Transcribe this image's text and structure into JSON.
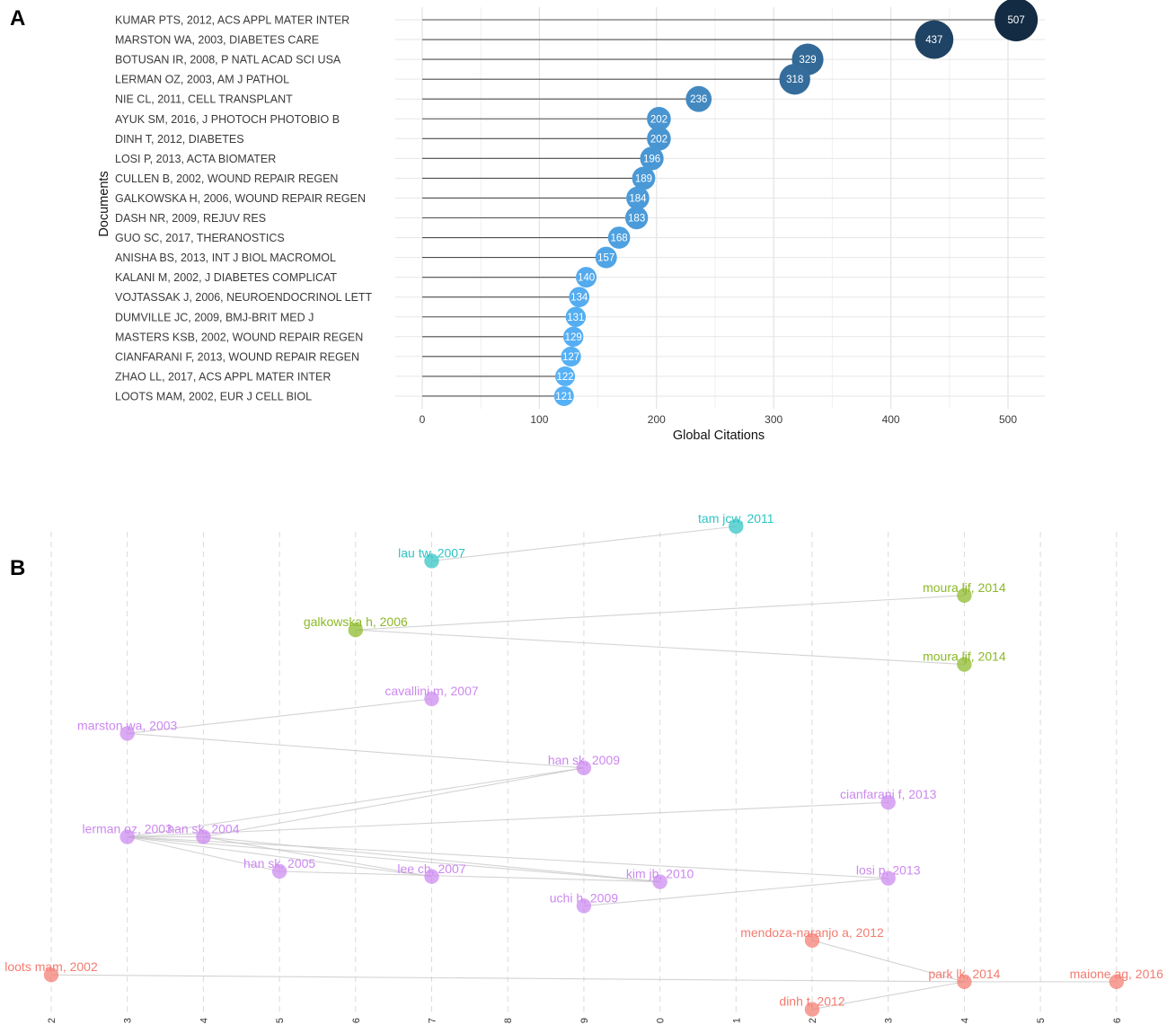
{
  "panels": {
    "a": {
      "letter": "A"
    },
    "b": {
      "letter": "B"
    }
  },
  "chart_data": [
    {
      "type": "lollipop",
      "panel": "A",
      "xlabel": "Global Citations",
      "ylabel": "Documents",
      "xlim": [
        0,
        530
      ],
      "xticks": [
        0,
        100,
        200,
        300,
        400,
        500
      ],
      "grid": true,
      "color_scale": {
        "low": "#56b1f7",
        "high": "#132b43",
        "domain": [
          121,
          507
        ]
      },
      "documents": [
        {
          "label": "KUMAR PTS, 2012, ACS APPL MATER INTER",
          "value": 507
        },
        {
          "label": "MARSTON WA, 2003, DIABETES CARE",
          "value": 437
        },
        {
          "label": "BOTUSAN IR, 2008, P NATL ACAD SCI USA",
          "value": 329
        },
        {
          "label": "LERMAN OZ, 2003, AM J PATHOL",
          "value": 318
        },
        {
          "label": "NIE CL, 2011, CELL TRANSPLANT",
          "value": 236
        },
        {
          "label": "AYUK SM, 2016, J PHOTOCH PHOTOBIO B",
          "value": 202
        },
        {
          "label": "DINH T, 2012, DIABETES",
          "value": 202
        },
        {
          "label": "LOSI P, 2013, ACTA BIOMATER",
          "value": 196
        },
        {
          "label": "CULLEN B, 2002, WOUND REPAIR REGEN",
          "value": 189
        },
        {
          "label": "GALKOWSKA H, 2006, WOUND REPAIR REGEN",
          "value": 184
        },
        {
          "label": "DASH NR, 2009, REJUV RES",
          "value": 183
        },
        {
          "label": "GUO SC, 2017, THERANOSTICS",
          "value": 168
        },
        {
          "label": "ANISHA BS, 2013, INT J BIOL MACROMOL",
          "value": 157
        },
        {
          "label": "KALANI M, 2002, J DIABETES COMPLICAT",
          "value": 140
        },
        {
          "label": "VOJTASSAK J, 2006, NEUROENDOCRINOL LETT",
          "value": 134
        },
        {
          "label": "DUMVILLE JC, 2009, BMJ-BRIT MED J",
          "value": 131
        },
        {
          "label": "MASTERS KSB, 2002, WOUND REPAIR REGEN",
          "value": 129
        },
        {
          "label": "CIANFARANI F, 2013, WOUND REPAIR REGEN",
          "value": 127
        },
        {
          "label": "ZHAO LL, 2017, ACS APPL MATER INTER",
          "value": 122
        },
        {
          "label": "LOOTS MAM, 2002, EUR J CELL BIOL",
          "value": 121
        }
      ]
    },
    {
      "type": "network",
      "panel": "B",
      "description_axis": "publication year",
      "year_range": [
        2002,
        2016
      ],
      "year_tick_labels": [
        "2",
        "3",
        "4",
        "5",
        "6",
        "7",
        "8",
        "9",
        "0",
        "1",
        "2",
        "3",
        "4",
        "5",
        "6"
      ],
      "cluster_colors": {
        "teal": "#2ec4c4",
        "green": "#8cb828",
        "purple": "#cc88f0",
        "red": "#f47b70"
      },
      "nodes": [
        {
          "id": "tam",
          "label": "tam jcw, 2011",
          "year": 2011,
          "cluster": "teal",
          "rank": 1
        },
        {
          "id": "lau",
          "label": "lau tw, 2007",
          "year": 2007,
          "cluster": "teal",
          "rank": 2
        },
        {
          "id": "moura1",
          "label": "moura ljf, 2014",
          "year": 2014,
          "cluster": "green",
          "rank": 3
        },
        {
          "id": "galkowska",
          "label": "galkowska h, 2006",
          "year": 2006,
          "cluster": "green",
          "rank": 4
        },
        {
          "id": "moura2",
          "label": "moura ljf, 2014",
          "year": 2014,
          "cluster": "green",
          "rank": 5
        },
        {
          "id": "cavallini",
          "label": "cavallini m, 2007",
          "year": 2007,
          "cluster": "purple",
          "rank": 6
        },
        {
          "id": "marston",
          "label": "marston wa, 2003",
          "year": 2003,
          "cluster": "purple",
          "rank": 7
        },
        {
          "id": "han2009",
          "label": "han sk, 2009",
          "year": 2009,
          "cluster": "purple",
          "rank": 8
        },
        {
          "id": "cianfarani",
          "label": "cianfarani f, 2013",
          "year": 2013,
          "cluster": "purple",
          "rank": 9
        },
        {
          "id": "lerman",
          "label": "lerman oz, 2003",
          "year": 2003,
          "cluster": "purple",
          "rank": 10
        },
        {
          "id": "han2004",
          "label": "han sk, 2004",
          "year": 2004,
          "cluster": "purple",
          "rank": 10
        },
        {
          "id": "han2005",
          "label": "han sk, 2005",
          "year": 2005,
          "cluster": "purple",
          "rank": 11
        },
        {
          "id": "leech",
          "label": "lee ch, 2007",
          "year": 2007,
          "cluster": "purple",
          "rank": 11.15
        },
        {
          "id": "losi",
          "label": "losi p, 2013",
          "year": 2013,
          "cluster": "purple",
          "rank": 11.2
        },
        {
          "id": "kim",
          "label": "kim jb, 2010",
          "year": 2010,
          "cluster": "purple",
          "rank": 11.3
        },
        {
          "id": "uchi",
          "label": "uchi h, 2009",
          "year": 2009,
          "cluster": "purple",
          "rank": 12
        },
        {
          "id": "mendoza",
          "label": "mendoza-naranjo a, 2012",
          "year": 2012,
          "cluster": "red",
          "rank": 13
        },
        {
          "id": "loots",
          "label": "loots mam, 2002",
          "year": 2002,
          "cluster": "red",
          "rank": 14
        },
        {
          "id": "park",
          "label": "park lk, 2014",
          "year": 2014,
          "cluster": "red",
          "rank": 14.2
        },
        {
          "id": "maione",
          "label": "maione ag, 2016",
          "year": 2016,
          "cluster": "red",
          "rank": 14.2
        },
        {
          "id": "dinh",
          "label": "dinh t, 2012",
          "year": 2012,
          "cluster": "red",
          "rank": 15
        }
      ],
      "edges": [
        [
          "lau",
          "tam"
        ],
        [
          "galkowska",
          "moura1"
        ],
        [
          "galkowska",
          "moura2"
        ],
        [
          "marston",
          "cavallini"
        ],
        [
          "marston",
          "han2009"
        ],
        [
          "lerman",
          "han2009"
        ],
        [
          "lerman",
          "han2004"
        ],
        [
          "lerman",
          "cianfarani"
        ],
        [
          "lerman",
          "han2005"
        ],
        [
          "lerman",
          "leech"
        ],
        [
          "lerman",
          "kim"
        ],
        [
          "lerman",
          "losi"
        ],
        [
          "han2004",
          "han2009"
        ],
        [
          "han2004",
          "leech"
        ],
        [
          "han2004",
          "kim"
        ],
        [
          "han2005",
          "kim"
        ],
        [
          "uchi",
          "losi"
        ],
        [
          "loots",
          "park"
        ],
        [
          "mendoza",
          "park"
        ],
        [
          "dinh",
          "park"
        ],
        [
          "park",
          "maione"
        ]
      ]
    }
  ]
}
